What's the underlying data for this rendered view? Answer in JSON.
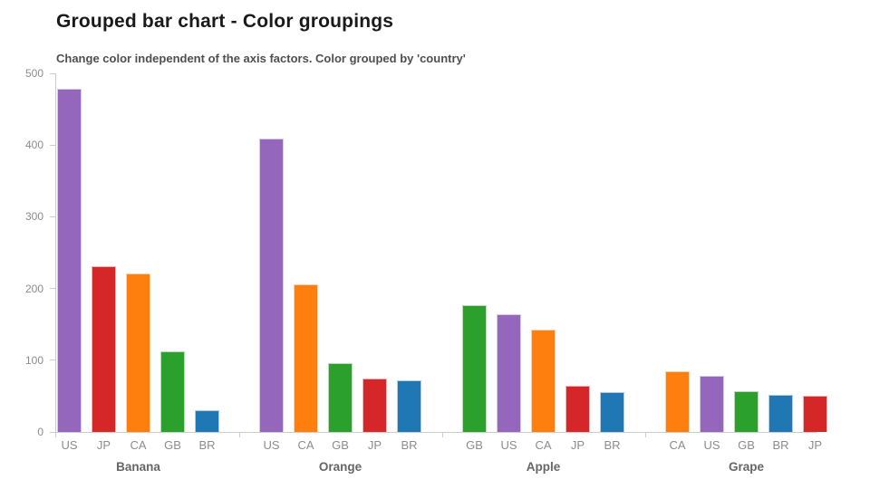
{
  "chart_data": {
    "type": "bar",
    "title": "Grouped bar chart - Color groupings",
    "subtitle": "Change color independent of the axis factors. Color grouped by 'country'",
    "ylim": [
      0,
      500
    ],
    "yticks": [
      0,
      100,
      200,
      300,
      400,
      500
    ],
    "grid": false,
    "legend": "none",
    "color_grouped_by": "country",
    "country_colors": {
      "US": "#9467bd",
      "JP": "#d62728",
      "CA": "#ff7f0e",
      "GB": "#2ca02c",
      "BR": "#1f77b4"
    },
    "groups": [
      {
        "label": "Banana",
        "bars": [
          {
            "country": "US",
            "value": 478
          },
          {
            "country": "JP",
            "value": 231
          },
          {
            "country": "CA",
            "value": 221
          },
          {
            "country": "GB",
            "value": 112
          },
          {
            "country": "BR",
            "value": 30
          }
        ]
      },
      {
        "label": "Orange",
        "bars": [
          {
            "country": "US",
            "value": 409
          },
          {
            "country": "CA",
            "value": 206
          },
          {
            "country": "GB",
            "value": 96
          },
          {
            "country": "JP",
            "value": 74
          },
          {
            "country": "BR",
            "value": 72
          }
        ]
      },
      {
        "label": "Apple",
        "bars": [
          {
            "country": "GB",
            "value": 177
          },
          {
            "country": "US",
            "value": 164
          },
          {
            "country": "CA",
            "value": 143
          },
          {
            "country": "JP",
            "value": 64
          },
          {
            "country": "BR",
            "value": 56
          }
        ]
      },
      {
        "label": "Grape",
        "bars": [
          {
            "country": "CA",
            "value": 85
          },
          {
            "country": "US",
            "value": 78
          },
          {
            "country": "GB",
            "value": 57
          },
          {
            "country": "BR",
            "value": 52
          },
          {
            "country": "JP",
            "value": 50
          }
        ]
      }
    ]
  }
}
